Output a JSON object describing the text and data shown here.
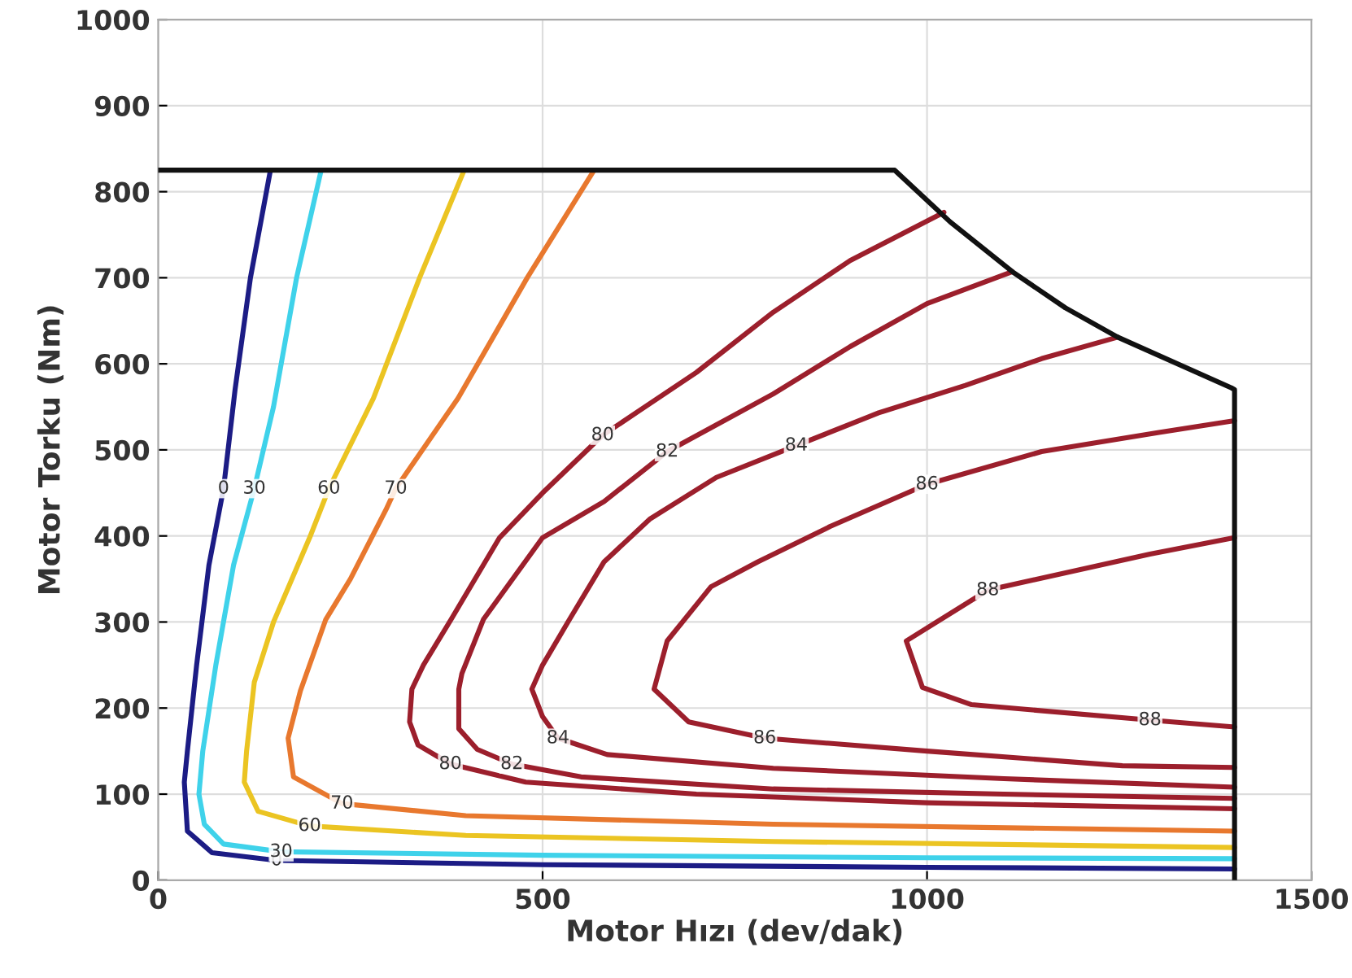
{
  "chart_data": {
    "type": "line",
    "xlabel": "Motor Hızı (dev/dak)",
    "ylabel": "Motor Torku (Nm)",
    "xlim": [
      0,
      1500
    ],
    "ylim": [
      0,
      1000
    ],
    "xticks": [
      0,
      500,
      1000,
      1500
    ],
    "yticks": [
      0,
      100,
      200,
      300,
      400,
      500,
      600,
      700,
      800,
      900,
      1000
    ],
    "grid": true,
    "series": [
      {
        "name": "0",
        "color": "#1c1c85",
        "x": [
          146,
          120,
          100,
          85,
          66,
          50,
          38,
          34,
          38,
          70,
          154,
          500,
          1000,
          1400
        ],
        "values": [
          825,
          700,
          570,
          455,
          366,
          250,
          150,
          114,
          57,
          32,
          23,
          18,
          15,
          13
        ]
      },
      {
        "name": "30",
        "color": "#3fd2ea",
        "x": [
          212,
          180,
          150,
          125,
          98,
          75,
          58,
          53,
          60,
          85,
          160,
          500,
          1000,
          1400
        ],
        "values": [
          825,
          700,
          550,
          455,
          366,
          250,
          150,
          100,
          65,
          42,
          33,
          29,
          26,
          25
        ]
      },
      {
        "name": "60",
        "color": "#ebc422",
        "x": [
          398,
          340,
          280,
          222,
          197,
          150,
          125,
          115,
          112,
          130,
          197,
          400,
          800,
          1400
        ],
        "values": [
          825,
          700,
          560,
          455,
          398,
          300,
          230,
          150,
          114,
          80,
          63,
          52,
          45,
          38
        ]
      },
      {
        "name": "70",
        "color": "#e8782e",
        "x": [
          567,
          480,
          390,
          309,
          296,
          250,
          218,
          185,
          169,
          176,
          239,
          400,
          800,
          1400
        ],
        "values": [
          825,
          700,
          560,
          455,
          430,
          350,
          303,
          220,
          165,
          120,
          89,
          75,
          65,
          57
        ]
      },
      {
        "name": "80",
        "color": "#9c1f2c",
        "x": [
          1022,
          900,
          800,
          700,
          578,
          500,
          444,
          381,
          345,
          330,
          327,
          338,
          380,
          478,
          700,
          1000,
          1400
        ],
        "values": [
          776,
          720,
          660,
          590,
          517,
          450,
          398,
          303,
          250,
          222,
          184,
          157,
          135,
          114,
          100,
          90,
          83
        ]
      },
      {
        "name": "82",
        "color": "#9c1f2c",
        "x": [
          1111,
          1000,
          900,
          800,
          662,
          580,
          500,
          423,
          395,
          391,
          391,
          415,
          460,
          550,
          800,
          1100,
          1400
        ],
        "values": [
          707,
          670,
          620,
          565,
          498,
          440,
          398,
          303,
          240,
          222,
          176,
          152,
          135,
          120,
          106,
          100,
          95
        ]
      },
      {
        "name": "84",
        "color": "#9c1f2c",
        "x": [
          1248,
          1149,
          1050,
          937,
          830,
          726,
          640,
          580,
          535,
          500,
          486,
          500,
          520,
          584,
          800,
          1100,
          1400
        ],
        "values": [
          631,
          606,
          575,
          543,
          505,
          468,
          420,
          370,
          303,
          250,
          222,
          190,
          165,
          146,
          130,
          118,
          108
        ]
      },
      {
        "name": "86",
        "color": "#9c1f2c",
        "x": [
          1400,
          1300,
          1149,
          1000,
          874,
          780,
          719,
          662,
          645,
          690,
          789,
          1000,
          1254,
          1400
        ],
        "values": [
          534,
          520,
          498,
          460,
          411,
          370,
          341,
          278,
          222,
          184,
          165,
          150,
          133,
          131
        ]
      },
      {
        "name": "88",
        "color": "#9c1f2c",
        "x": [
          1400,
          1290,
          1079,
          973,
          994,
          1058,
          1290,
          1400
        ],
        "values": [
          398,
          379,
          337,
          278,
          224,
          204,
          186,
          178
        ]
      },
      {
        "color": "#111111",
        "x": [
          0,
          958,
          1030,
          1111,
          1180,
          1248,
          1396,
          1400,
          1400
        ],
        "values": [
          825,
          825,
          765,
          707,
          665,
          631,
          572,
          570,
          0
        ]
      }
    ]
  }
}
